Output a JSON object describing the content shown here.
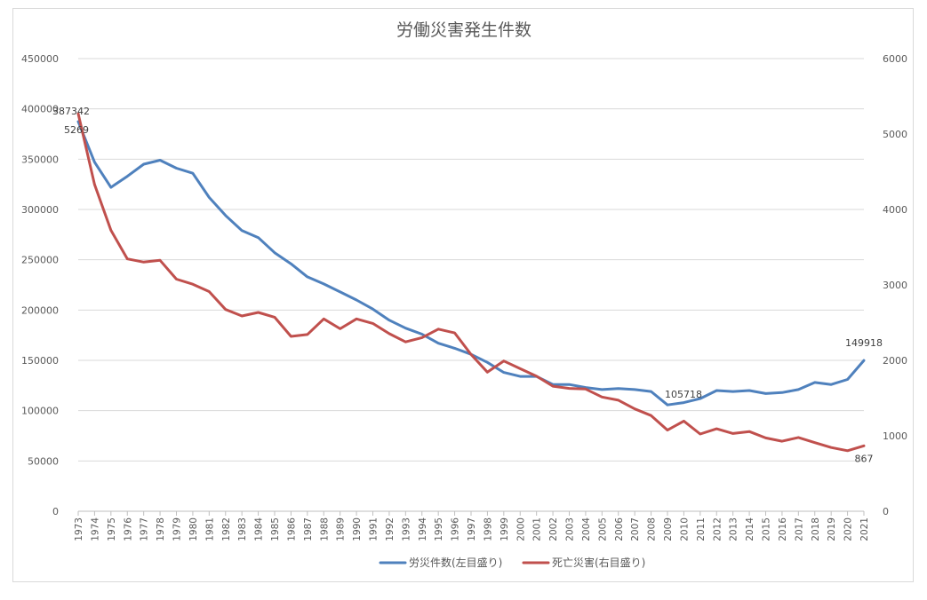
{
  "chart_data": {
    "type": "line",
    "title": "労働災害発生件数",
    "x": [
      "1973",
      "1974",
      "1975",
      "1976",
      "1977",
      "1978",
      "1979",
      "1980",
      "1981",
      "1982",
      "1983",
      "1984",
      "1985",
      "1986",
      "1987",
      "1988",
      "1989",
      "1990",
      "1991",
      "1992",
      "1993",
      "1994",
      "1995",
      "1996",
      "1997",
      "1998",
      "1999",
      "2000",
      "2001",
      "2002",
      "2003",
      "2004",
      "2005",
      "2006",
      "2007",
      "2008",
      "2009",
      "2010",
      "2011",
      "2012",
      "2013",
      "2014",
      "2015",
      "2016",
      "2017",
      "2018",
      "2019",
      "2020",
      "2021"
    ],
    "y_left": {
      "min": 0,
      "max": 450000,
      "step": 50000,
      "ticks": [
        "0",
        "50000",
        "100000",
        "150000",
        "200000",
        "250000",
        "300000",
        "350000",
        "400000",
        "450000"
      ]
    },
    "y_right": {
      "min": 0,
      "max": 6000,
      "step": 1000,
      "ticks": [
        "0",
        "1000",
        "2000",
        "3000",
        "4000",
        "5000",
        "6000"
      ]
    },
    "grid": true,
    "legend_position": "bottom",
    "series": [
      {
        "name": "労災件数(左目盛り)",
        "axis": "left",
        "color": "#4f81bd",
        "values": [
          387342,
          347000,
          322000,
          333000,
          345000,
          349000,
          341000,
          336000,
          312000,
          294000,
          279000,
          272000,
          257000,
          246000,
          233000,
          226000,
          218000,
          210000,
          201000,
          190000,
          182000,
          176000,
          167000,
          162000,
          156000,
          148000,
          138000,
          134000,
          134000,
          126000,
          126000,
          123000,
          121000,
          122000,
          121000,
          119000,
          105718,
          108000,
          112000,
          120000,
          119000,
          120000,
          117000,
          118000,
          121000,
          128000,
          126000,
          131000,
          149918
        ]
      },
      {
        "name": "死亡災害(右目盛り)",
        "axis": "right",
        "color": "#c0504d",
        "values": [
          5269,
          4330,
          3725,
          3345,
          3302,
          3326,
          3077,
          3009,
          2912,
          2674,
          2588,
          2635,
          2572,
          2318,
          2342,
          2549,
          2419,
          2550,
          2489,
          2354,
          2245,
          2301,
          2414,
          2363,
          2078,
          1844,
          1992,
          1889,
          1790,
          1658,
          1628,
          1620,
          1514,
          1472,
          1357,
          1268,
          1075,
          1195,
          1024,
          1093,
          1030,
          1057,
          972,
          928,
          978,
          909,
          845,
          802,
          867
        ]
      }
    ],
    "annotations": [
      {
        "series": 0,
        "index": 0,
        "text": "387342"
      },
      {
        "series": 1,
        "index": 0,
        "text": "5269"
      },
      {
        "series": 0,
        "index": 36,
        "text": "105718"
      },
      {
        "series": 0,
        "index": 48,
        "text": "149918"
      },
      {
        "series": 1,
        "index": 48,
        "text": "867"
      }
    ]
  }
}
